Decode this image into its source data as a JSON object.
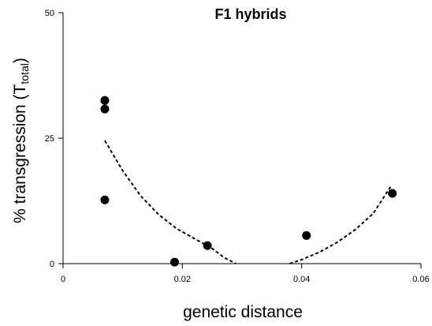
{
  "chart_data": {
    "type": "scatter",
    "title": "F1 hybrids",
    "xlabel": "genetic distance",
    "ylabel_main": "% transgression (T",
    "ylabel_sub": "total",
    "ylabel_close": ")",
    "xlim": [
      0,
      0.06
    ],
    "ylim": [
      0,
      50
    ],
    "x_ticks": [
      0,
      0.02,
      0.04,
      0.06
    ],
    "x_tick_labels": [
      "0",
      "0.02",
      "0.04",
      "0.06"
    ],
    "y_ticks": [
      0,
      25,
      50
    ],
    "y_tick_labels": [
      "0",
      "25",
      "50"
    ],
    "grid": false,
    "legend": "none",
    "series": [
      {
        "points": [
          {
            "x": 0.007,
            "y": 32.5
          },
          {
            "x": 0.007,
            "y": 30.8
          },
          {
            "x": 0.007,
            "y": 12.7
          },
          {
            "x": 0.0187,
            "y": 0.3
          },
          {
            "x": 0.0242,
            "y": 3.6
          },
          {
            "x": 0.0408,
            "y": 5.6
          },
          {
            "x": 0.0552,
            "y": 14.0
          }
        ],
        "color": "#000000"
      }
    ],
    "fit_curve": {
      "style": "dashed",
      "color": "#000000",
      "segments": [
        [
          {
            "x": 0.007,
            "y": 24.5
          },
          {
            "x": 0.01,
            "y": 18.5
          },
          {
            "x": 0.013,
            "y": 13.5
          },
          {
            "x": 0.016,
            "y": 9.8
          },
          {
            "x": 0.019,
            "y": 7.0
          },
          {
            "x": 0.022,
            "y": 5.0
          },
          {
            "x": 0.025,
            "y": 3.0
          },
          {
            "x": 0.027,
            "y": 1.2
          },
          {
            "x": 0.029,
            "y": 0.0
          }
        ],
        [
          {
            "x": 0.038,
            "y": 0.0
          },
          {
            "x": 0.04,
            "y": 0.8
          },
          {
            "x": 0.043,
            "y": 2.3
          },
          {
            "x": 0.046,
            "y": 4.3
          },
          {
            "x": 0.049,
            "y": 6.8
          },
          {
            "x": 0.052,
            "y": 10.0
          },
          {
            "x": 0.055,
            "y": 15.5
          }
        ]
      ]
    }
  }
}
